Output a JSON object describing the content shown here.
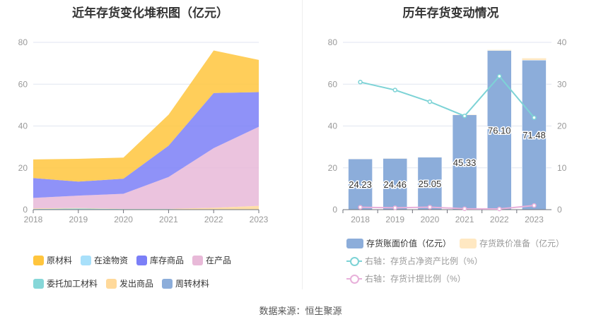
{
  "footer": {
    "source": "数据来源：恒生聚源"
  },
  "chart_data": [
    {
      "type": "area",
      "title": "近年存货变化堆积图（亿元）",
      "categories": [
        "2018",
        "2019",
        "2020",
        "2021",
        "2022",
        "2023"
      ],
      "ylim": [
        0,
        80
      ],
      "yticks": [
        0,
        20,
        40,
        60,
        80
      ],
      "grid": true,
      "legend_position": "bottom",
      "stack_order_bottom_to_top": [
        "周转材料",
        "委托加工材料",
        "发出商品",
        "在产品",
        "库存商品",
        "在途物资",
        "原材料"
      ],
      "series": [
        {
          "name": "原材料",
          "color": "#ffc53d",
          "values": [
            8.9,
            10.9,
            10.1,
            14.8,
            20.3,
            15.4
          ]
        },
        {
          "name": "在途物资",
          "color": "#a8e0fa",
          "values": [
            0,
            0,
            0,
            0,
            0,
            0
          ]
        },
        {
          "name": "库存商品",
          "color": "#7b7ff7",
          "values": [
            9.5,
            6.7,
            7.2,
            15.0,
            26.4,
            16.6
          ]
        },
        {
          "name": "在产品",
          "color": "#e8b9d8",
          "values": [
            5.0,
            5.9,
            7.2,
            15.2,
            28.5,
            37.8
          ]
        },
        {
          "name": "委托加工材料",
          "color": "#86d7d8",
          "values": [
            0.3,
            0.6,
            0.3,
            0.3,
            0,
            0
          ]
        },
        {
          "name": "发出商品",
          "color": "#ffd99a",
          "values": [
            0.3,
            0.2,
            0.1,
            0.1,
            0.9,
            1.8
          ]
        },
        {
          "name": "周转材料",
          "color": "#8cadda",
          "values": [
            0,
            0,
            0,
            0,
            0,
            0
          ]
        }
      ]
    },
    {
      "type": "bar+line",
      "title": "历年存货变动情况",
      "categories": [
        "2018",
        "2019",
        "2020",
        "2021",
        "2022",
        "2023"
      ],
      "ylim": [
        0,
        80
      ],
      "yticks": [
        0,
        20,
        40,
        60,
        80
      ],
      "y2lim": [
        0,
        40
      ],
      "y2ticks": [
        0,
        10,
        20,
        30,
        40
      ],
      "grid": true,
      "legend_position": "bottom",
      "bars": [
        {
          "name": "存货账面价值（亿元）",
          "color": "#8cadda",
          "values": [
            24.23,
            24.46,
            25.05,
            45.33,
            76.1,
            71.48
          ],
          "labels": [
            "24.23",
            "24.46",
            "25.05",
            "45.33",
            "76.10",
            "71.48"
          ]
        },
        {
          "name": "存货跌价准备（亿元）",
          "color": "#ffe8c2",
          "values": [
            0.1,
            0.1,
            0.1,
            0.2,
            0.3,
            0.9
          ]
        }
      ],
      "lines": [
        {
          "name": "右轴：存货占净资产比例（%）",
          "color": "#7dd3d6",
          "axis": "right",
          "values": [
            30.5,
            28.6,
            25.8,
            22.4,
            31.9,
            22.0
          ]
        },
        {
          "name": "右轴：存货计提比例（%）",
          "color": "#e8b0da",
          "axis": "right",
          "values": [
            0.56,
            0.45,
            0.6,
            0.22,
            0.17,
            1.0
          ]
        }
      ]
    }
  ]
}
